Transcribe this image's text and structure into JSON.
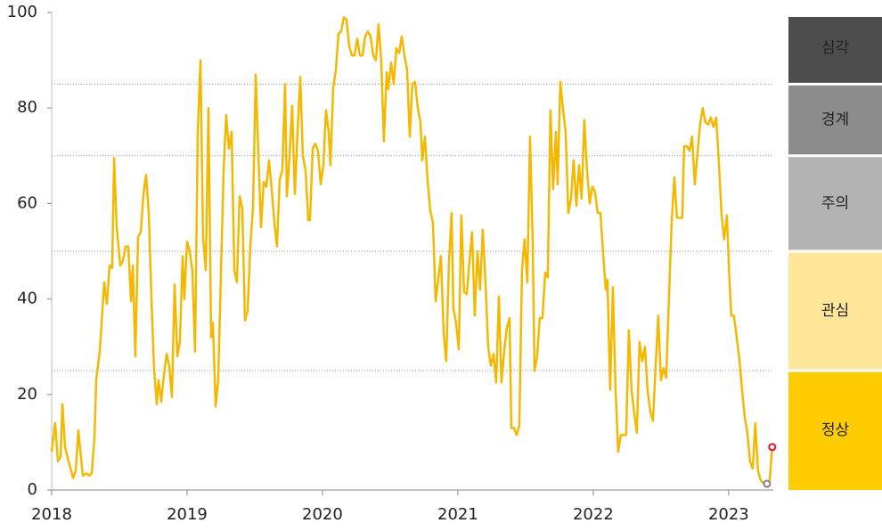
{
  "chart_data": {
    "type": "line",
    "xlim": [
      2018,
      2023.33
    ],
    "xticks": [
      2018,
      2019,
      2020,
      2021,
      2022,
      2023
    ],
    "ylim": [
      0,
      100
    ],
    "yticks": [
      0,
      20,
      40,
      60,
      80,
      100
    ],
    "bands": [
      {
        "label": "정상",
        "from": 0,
        "to": 25,
        "color": "#ffcc00",
        "text_color": "#333333"
      },
      {
        "label": "관심",
        "from": 25,
        "to": 50,
        "color": "#ffe699",
        "text_color": "#333333"
      },
      {
        "label": "주의",
        "from": 50,
        "to": 70,
        "color": "#b3b3b3",
        "text_color": "#333333"
      },
      {
        "label": "경계",
        "from": 70,
        "to": 85,
        "color": "#8c8c8c",
        "text_color": "#ffffff"
      },
      {
        "label": "심각",
        "from": 85,
        "to": 100,
        "color": "#4d4d4d",
        "text_color": "#ffffff"
      }
    ],
    "series": [
      {
        "color": "#f5b800",
        "x": [
          2018,
          2018.026,
          2018.046,
          2018.066,
          2018.079,
          2018.099,
          2018.125,
          2018.158,
          2018.178,
          2018.197,
          2018.23,
          2018.257,
          2018.276,
          2018.296,
          2018.316,
          2018.329,
          2018.355,
          2018.388,
          2018.408,
          2018.428,
          2018.447,
          2018.461,
          2018.48,
          2018.507,
          2018.526,
          2018.546,
          2018.566,
          2018.586,
          2018.599,
          2018.618,
          2018.638,
          2018.658,
          2018.678,
          2018.697,
          2018.717,
          2018.737,
          2018.757,
          2018.776,
          2018.789,
          2018.809,
          2018.829,
          2018.849,
          2018.868,
          2018.888,
          2018.908,
          2018.928,
          2018.947,
          2018.967,
          2018.98,
          2019,
          2019.02,
          2019.039,
          2019.059,
          2019.079,
          2019.099,
          2019.118,
          2019.138,
          2019.158,
          2019.178,
          2019.191,
          2019.211,
          2019.23,
          2019.25,
          2019.27,
          2019.289,
          2019.309,
          2019.329,
          2019.349,
          2019.368,
          2019.388,
          2019.408,
          2019.428,
          2019.447,
          2019.467,
          2019.487,
          2019.507,
          2019.526,
          2019.546,
          2019.566,
          2019.586,
          2019.605,
          2019.625,
          2019.645,
          2019.664,
          2019.684,
          2019.704,
          2019.724,
          2019.737,
          2019.757,
          2019.776,
          2019.796,
          2019.816,
          2019.836,
          2019.855,
          2019.875,
          2019.895,
          2019.908,
          2019.928,
          2019.947,
          2019.967,
          2019.987,
          2020.007,
          2020.026,
          2020.046,
          2020.059,
          2020.079,
          2020.099,
          2020.118,
          2020.138,
          2020.158,
          2020.178,
          2020.197,
          2020.217,
          2020.237,
          2020.257,
          2020.276,
          2020.296,
          2020.316,
          2020.336,
          2020.355,
          2020.375,
          2020.395,
          2020.414,
          2020.434,
          2020.454,
          2020.474,
          2020.487,
          2020.507,
          2020.526,
          2020.546,
          2020.566,
          2020.586,
          2020.605,
          2020.625,
          2020.645,
          2020.664,
          2020.684,
          2020.704,
          2020.724,
          2020.737,
          2020.757,
          2020.776,
          2020.796,
          2020.816,
          2020.836,
          2020.855,
          2020.875,
          2020.895,
          2020.914,
          2020.934,
          2020.954,
          2020.967,
          2020.987,
          2021.007,
          2021.026,
          2021.046,
          2021.066,
          2021.086,
          2021.105,
          2021.125,
          2021.145,
          2021.164,
          2021.184,
          2021.204,
          2021.224,
          2021.243,
          2021.263,
          2021.283,
          2021.303,
          2021.322,
          2021.342,
          2021.362,
          2021.382,
          2021.395,
          2021.414,
          2021.434,
          2021.454,
          2021.474,
          2021.493,
          2021.513,
          2021.533,
          2021.553,
          2021.566,
          2021.586,
          2021.605,
          2021.625,
          2021.645,
          2021.664,
          2021.684,
          2021.704,
          2021.724,
          2021.737,
          2021.757,
          2021.776,
          2021.796,
          2021.816,
          2021.836,
          2021.855,
          2021.875,
          2021.895,
          2021.914,
          2021.934,
          2021.954,
          2021.974,
          2021.993,
          2022.013,
          2022.033,
          2022.053,
          2022.072,
          2022.092,
          2022.105,
          2022.125,
          2022.145,
          2022.164,
          2022.184,
          2022.204,
          2022.224,
          2022.243,
          2022.263,
          2022.283,
          2022.303,
          2022.322,
          2022.342,
          2022.362,
          2022.382,
          2022.401,
          2022.421,
          2022.441,
          2022.461,
          2022.48,
          2022.5,
          2022.52,
          2022.539,
          2022.559,
          2022.579,
          2022.599,
          2022.618,
          2022.638,
          2022.658,
          2022.671,
          2022.691,
          2022.711,
          2022.73,
          2022.75,
          2022.77,
          2022.789,
          2022.809,
          2022.829,
          2022.849,
          2022.868,
          2022.888,
          2022.908,
          2022.928,
          2022.947,
          2022.967,
          2022.987,
          2023.007,
          2023.02,
          2023.039,
          2023.059,
          2023.079,
          2023.099,
          2023.118,
          2023.138,
          2023.158,
          2023.178,
          2023.197,
          2023.217,
          2023.237,
          2023.257,
          2023.283,
          2023.303,
          2023.322
        ],
        "values": [
          8,
          14,
          6,
          7,
          18,
          9,
          6,
          2.5,
          4,
          12.5,
          3,
          3.5,
          3,
          3.5,
          11,
          23,
          29,
          43.5,
          39,
          47,
          46.5,
          69.5,
          55,
          47,
          48,
          51,
          51,
          39.5,
          47,
          28,
          53,
          54,
          62,
          66,
          58,
          40,
          25,
          18,
          23,
          18.5,
          24,
          28.5,
          26,
          19.5,
          43,
          28,
          31,
          49,
          40,
          52,
          50,
          46,
          29,
          75,
          90,
          53,
          46,
          80,
          32,
          35,
          17.5,
          23,
          45,
          67,
          78.5,
          71.5,
          75,
          46,
          43.5,
          61.5,
          59,
          35.5,
          37.5,
          51,
          59,
          87,
          71,
          55,
          64.5,
          63.5,
          69,
          63,
          56,
          51,
          65,
          67,
          85,
          61.5,
          70,
          80.5,
          62,
          75,
          86.5,
          70,
          67,
          56.5,
          56.5,
          71.5,
          72.5,
          71,
          64,
          68,
          79.5,
          75,
          68,
          84,
          88,
          95.5,
          96,
          99,
          98.5,
          93,
          91,
          91,
          94.5,
          91,
          91,
          95,
          96,
          95,
          91,
          90,
          97.5,
          90,
          73,
          87.5,
          84,
          89.5,
          85,
          92.5,
          91.5,
          95,
          91,
          88,
          74,
          85,
          85.5,
          80,
          77,
          69,
          74,
          65,
          58.5,
          56,
          39.5,
          44,
          49,
          33,
          27,
          47.5,
          58,
          38,
          35,
          29.5,
          57.5,
          41.5,
          41,
          48,
          54,
          36.5,
          50,
          42,
          54.5,
          43.5,
          30,
          26,
          28.5,
          22.5,
          40.5,
          22.5,
          29,
          34,
          36,
          13,
          13,
          11.5,
          13.5,
          46,
          52.5,
          43.5,
          74,
          52,
          25,
          28,
          36,
          36,
          45.5,
          44.5,
          79.5,
          63,
          75,
          64,
          85.5,
          80,
          75,
          58,
          61,
          69,
          59.5,
          68,
          61,
          77.5,
          67,
          60,
          63.5,
          62.5,
          58,
          58,
          50,
          42,
          44,
          21,
          42.5,
          22,
          8,
          11.5,
          11.5,
          11.5,
          33.5,
          21,
          16,
          12,
          31,
          27,
          30,
          21,
          16.5,
          14.5,
          26,
          36.5,
          23,
          25.5,
          23.5,
          40,
          56,
          65.5,
          57,
          57,
          57,
          72,
          72,
          71,
          74,
          64,
          70.5,
          76.5,
          80,
          77,
          76.5,
          78,
          76,
          78,
          68.5,
          58,
          52.5,
          57.5,
          43.5,
          36.5,
          36.5,
          32,
          27.5,
          21,
          15.5,
          12,
          6,
          4.5,
          14,
          4,
          2,
          1.5,
          1.3,
          2,
          9
        ]
      }
    ],
    "points": [
      {
        "x": 2023.283,
        "value": 1.3,
        "color": "#7f7f7f"
      },
      {
        "x": 2023.322,
        "value": 9,
        "color": "#e8102a"
      }
    ]
  }
}
